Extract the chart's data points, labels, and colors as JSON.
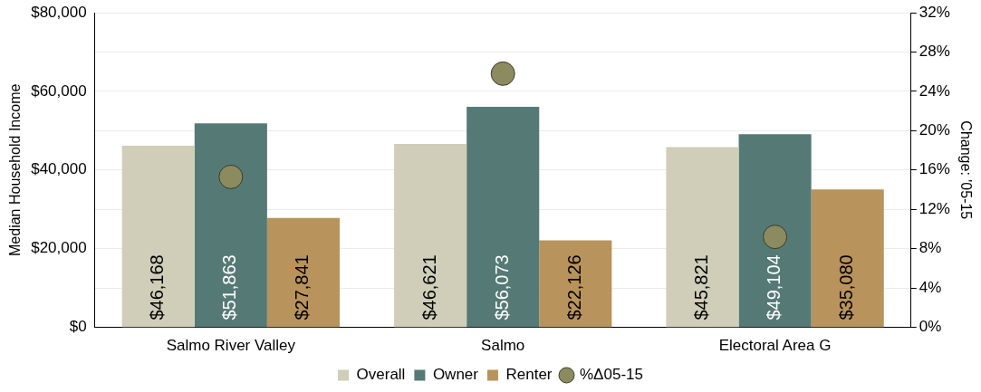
{
  "chart_data": {
    "type": "bar",
    "categories": [
      "Salmo River Valley",
      "Salmo",
      "Electoral Area G"
    ],
    "ylabel": "Median Household Income",
    "y2label": "Change: '05-15",
    "series": [
      {
        "name": "Overall",
        "color": "#d0cdb8",
        "values": [
          46168,
          46621,
          45821
        ],
        "value_labels": [
          "$46,168",
          "$46,621",
          "$45,821"
        ]
      },
      {
        "name": "Owner",
        "color": "#557a76",
        "values": [
          51863,
          56073,
          49104
        ],
        "value_labels": [
          "$51,863",
          "$56,073",
          "$49,104"
        ]
      },
      {
        "name": "Renter",
        "color": "#b8935c",
        "values": [
          27841,
          22126,
          35080
        ],
        "value_labels": [
          "$27,841",
          "$22,126",
          "$35,080"
        ]
      },
      {
        "name": "%Δ05-15",
        "type": "scatter",
        "axis": "y2",
        "color": "#8c8a5f",
        "marker": "circle",
        "x": [
          "Salmo River Valley",
          "Salmo",
          "Electoral Area G"
        ],
        "values": [
          15.3,
          25.8,
          9.2
        ]
      }
    ],
    "ylim": [
      0,
      80000
    ],
    "yticks": [
      {
        "value": 0,
        "label": "$0"
      },
      {
        "value": 20000,
        "label": "$20,000"
      },
      {
        "value": 40000,
        "label": "$40,000"
      },
      {
        "value": 60000,
        "label": "$60,000"
      },
      {
        "value": 80000,
        "label": "$80,000"
      }
    ],
    "y2lim": [
      0,
      32
    ],
    "y2ticks": [
      {
        "value": 0,
        "label": "0%"
      },
      {
        "value": 4,
        "label": "4%"
      },
      {
        "value": 8,
        "label": "8%"
      },
      {
        "value": 12,
        "label": "12%"
      },
      {
        "value": 16,
        "label": "16%"
      },
      {
        "value": 20,
        "label": "20%"
      },
      {
        "value": 24,
        "label": "24%"
      },
      {
        "value": 28,
        "label": "28%"
      },
      {
        "value": 32,
        "label": "32%"
      }
    ],
    "grid": "y",
    "legend": "bottom"
  }
}
